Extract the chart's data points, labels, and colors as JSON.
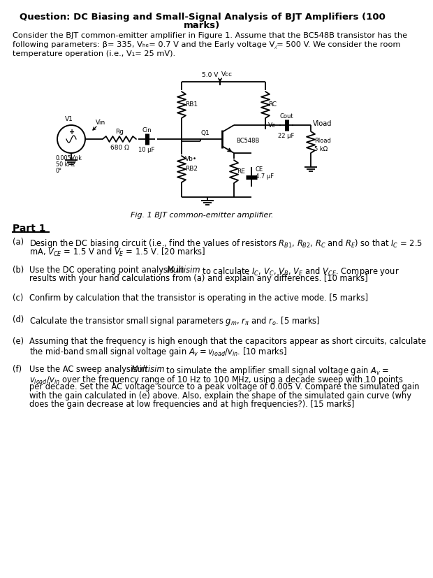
{
  "bg_color": "#ffffff",
  "title_line1": "Question: DC Biasing and Small-Signal Analysis of BJT Amplifiers (100",
  "title_line2": "marks)",
  "intro_line1": "Consider the BJT common-emitter amplifier in Figure 1. Assume that the BC548B transistor has the",
  "intro_line2": "following parameters: β= 335, Vₕₑ= 0.7 V and the Early voltage V⁁= 500 V. We consider the room",
  "intro_line3": "temperature operation (i.e., V₁= 25 mV).",
  "fig_caption": "Fig. 1 BJT common-emitter amplifier.",
  "part1": "Part 1",
  "qa_a1": "Design the DC biasing circuit (i.e., find the values of resistors ",
  "qa_a_math": "R_B1, R_B2, R_C and R_E",
  "qa_a2": " so that I_C = 2.5",
  "qa_a3": "mA, V_CE = 1.5 V and V_E = 1.5 V. [20 marks]",
  "qa_b1": "Use the DC operating point analysis in ",
  "qa_b_italic": "Multisim",
  "qa_b2": " to calculate I_C, V_C, V_B, V_E and V_CE. Compare your",
  "qa_b3": "results with your hand calculations from (a) and explain any differences. [10 marks]",
  "qa_c": "Confirm by calculation that the transistor is operating in the active mode. [5 marks]",
  "qa_d": "Calculate the transistor small signal parameters g_m, r_pi and r_o. [5 marks]",
  "qa_e1": "Assuming that the frequency is high enough that the capacitors appear as short circuits, calculate",
  "qa_e2": "the mid-band small signal voltage gain A_v = v_load/v_in. [10 marks]",
  "qa_f1": "Use the AC sweep analysis in ",
  "qa_f_italic": "Multisim",
  "qa_f2": " to simulate the amplifier small signal voltage gain A_v =",
  "qa_f3": "v_load/v_in over the frequency range of 10 Hz to 100 MHz, using a decade sweep with 10 points",
  "qa_f4": "per decade. Set the AC voltage source to a peak voltage of 0.005 V. Compare the simulated gain",
  "qa_f5": "with the gain calculated in (e) above. Also, explain the shape of the simulated gain curve (why",
  "qa_f6": "does the gain decrease at low frequencies and at high frequencies?). [15 marks]"
}
